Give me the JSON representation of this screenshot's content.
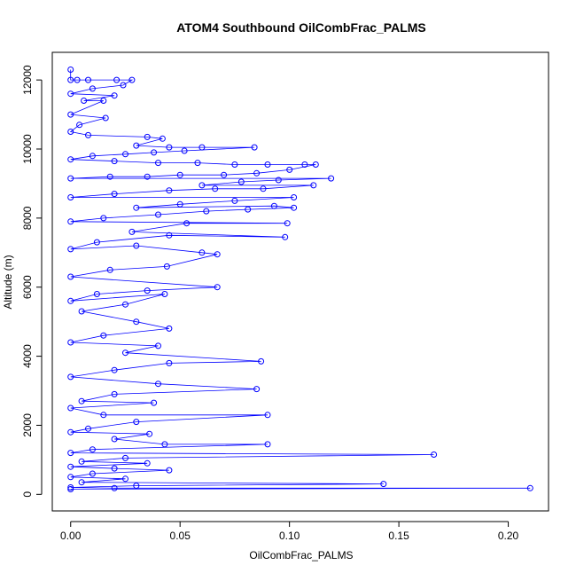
{
  "chart_data": {
    "type": "scatter",
    "title": "ATOM4 Southbound OilCombFrac_PALMS",
    "xlabel": "OilCombFrac_PALMS",
    "ylabel": "Altitude (m)",
    "xlim": [
      -0.0084,
      0.2184
    ],
    "ylim": [
      -480,
      12800
    ],
    "x_ticks": [
      0.0,
      0.05,
      0.1,
      0.15,
      0.2
    ],
    "x_tick_labels": [
      "0.00",
      "0.05",
      "0.10",
      "0.15",
      "0.20"
    ],
    "y_ticks": [
      0,
      2000,
      4000,
      6000,
      8000,
      10000,
      12000
    ],
    "y_tick_labels": [
      "0",
      "2000",
      "4000",
      "6000",
      "8000",
      "10000",
      "12000"
    ],
    "color": "#0000ff",
    "marker": "open-circle",
    "connected": true,
    "series": [
      {
        "values": [
          [
            0.0,
            12300
          ],
          [
            0.0,
            12000
          ],
          [
            0.003,
            12000
          ],
          [
            0.008,
            12000
          ],
          [
            0.021,
            12000
          ],
          [
            0.028,
            12000
          ],
          [
            0.024,
            11850
          ],
          [
            0.01,
            11750
          ],
          [
            0.0,
            11600
          ],
          [
            0.02,
            11550
          ],
          [
            0.006,
            11400
          ],
          [
            0.015,
            11400
          ],
          [
            0.0,
            11000
          ],
          [
            0.016,
            10900
          ],
          [
            0.004,
            10700
          ],
          [
            0.0,
            10500
          ],
          [
            0.008,
            10400
          ],
          [
            0.035,
            10350
          ],
          [
            0.042,
            10300
          ],
          [
            0.03,
            10100
          ],
          [
            0.045,
            10050
          ],
          [
            0.06,
            10050
          ],
          [
            0.084,
            10050
          ],
          [
            0.052,
            9950
          ],
          [
            0.038,
            9900
          ],
          [
            0.025,
            9850
          ],
          [
            0.01,
            9800
          ],
          [
            0.0,
            9700
          ],
          [
            0.02,
            9650
          ],
          [
            0.04,
            9600
          ],
          [
            0.058,
            9600
          ],
          [
            0.075,
            9550
          ],
          [
            0.09,
            9550
          ],
          [
            0.107,
            9550
          ],
          [
            0.112,
            9550
          ],
          [
            0.1,
            9400
          ],
          [
            0.085,
            9300
          ],
          [
            0.07,
            9250
          ],
          [
            0.05,
            9250
          ],
          [
            0.035,
            9200
          ],
          [
            0.018,
            9200
          ],
          [
            0.0,
            9150
          ],
          [
            0.119,
            9150
          ],
          [
            0.095,
            9100
          ],
          [
            0.078,
            9050
          ],
          [
            0.06,
            8950
          ],
          [
            0.111,
            8950
          ],
          [
            0.088,
            8850
          ],
          [
            0.066,
            8850
          ],
          [
            0.045,
            8800
          ],
          [
            0.02,
            8700
          ],
          [
            0.0,
            8600
          ],
          [
            0.102,
            8600
          ],
          [
            0.075,
            8500
          ],
          [
            0.05,
            8400
          ],
          [
            0.03,
            8300
          ],
          [
            0.093,
            8350
          ],
          [
            0.102,
            8300
          ],
          [
            0.081,
            8250
          ],
          [
            0.062,
            8200
          ],
          [
            0.04,
            8100
          ],
          [
            0.015,
            8000
          ],
          [
            0.0,
            7900
          ],
          [
            0.099,
            7850
          ],
          [
            0.053,
            7850
          ],
          [
            0.028,
            7600
          ],
          [
            0.098,
            7450
          ],
          [
            0.045,
            7500
          ],
          [
            0.012,
            7300
          ],
          [
            0.0,
            7100
          ],
          [
            0.03,
            7200
          ],
          [
            0.06,
            7000
          ],
          [
            0.067,
            6950
          ],
          [
            0.044,
            6600
          ],
          [
            0.018,
            6500
          ],
          [
            0.0,
            6300
          ],
          [
            0.067,
            6000
          ],
          [
            0.035,
            5900
          ],
          [
            0.012,
            5800
          ],
          [
            0.0,
            5600
          ],
          [
            0.043,
            5800
          ],
          [
            0.025,
            5500
          ],
          [
            0.005,
            5300
          ],
          [
            0.03,
            5000
          ],
          [
            0.045,
            4800
          ],
          [
            0.015,
            4600
          ],
          [
            0.0,
            4400
          ],
          [
            0.04,
            4300
          ],
          [
            0.025,
            4100
          ],
          [
            0.087,
            3850
          ],
          [
            0.045,
            3800
          ],
          [
            0.02,
            3600
          ],
          [
            0.0,
            3400
          ],
          [
            0.04,
            3200
          ],
          [
            0.085,
            3050
          ],
          [
            0.02,
            2900
          ],
          [
            0.005,
            2700
          ],
          [
            0.038,
            2650
          ],
          [
            0.0,
            2500
          ],
          [
            0.015,
            2300
          ],
          [
            0.09,
            2300
          ],
          [
            0.03,
            2100
          ],
          [
            0.008,
            1900
          ],
          [
            0.0,
            1800
          ],
          [
            0.036,
            1750
          ],
          [
            0.02,
            1600
          ],
          [
            0.043,
            1450
          ],
          [
            0.09,
            1450
          ],
          [
            0.01,
            1300
          ],
          [
            0.0,
            1200
          ],
          [
            0.166,
            1150
          ],
          [
            0.025,
            1050
          ],
          [
            0.005,
            950
          ],
          [
            0.035,
            900
          ],
          [
            0.0,
            800
          ],
          [
            0.02,
            750
          ],
          [
            0.045,
            700
          ],
          [
            0.01,
            600
          ],
          [
            0.0,
            500
          ],
          [
            0.025,
            450
          ],
          [
            0.005,
            350
          ],
          [
            0.143,
            300
          ],
          [
            0.03,
            250
          ],
          [
            0.0,
            200
          ],
          [
            0.02,
            180
          ],
          [
            0.21,
            180
          ],
          [
            0.0,
            150
          ]
        ]
      }
    ]
  }
}
